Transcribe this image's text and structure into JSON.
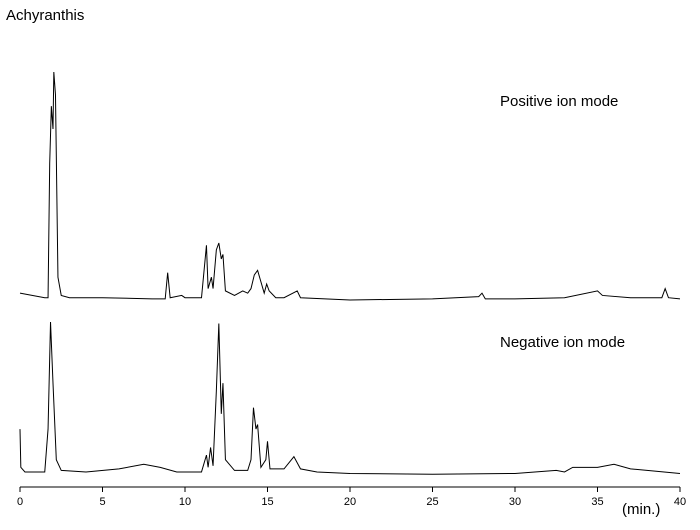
{
  "chart_data": [
    {
      "type": "line",
      "title": "Achyranthis",
      "annotation": "Positive ion mode",
      "color": "#000000",
      "ylim": [
        0,
        100
      ],
      "x": [
        0,
        1.5,
        1.7,
        1.8,
        1.9,
        2.0,
        2.05,
        2.15,
        2.3,
        2.5,
        3,
        5,
        8,
        8.8,
        8.95,
        9.1,
        9.8,
        10,
        11,
        11.3,
        11.4,
        11.6,
        11.7,
        11.9,
        12.05,
        12.2,
        12.3,
        12.45,
        13,
        13.5,
        13.8,
        14.0,
        14.2,
        14.4,
        14.6,
        14.8,
        14.95,
        15.1,
        15.5,
        16,
        16.8,
        17,
        20,
        25,
        27.8,
        28,
        28.2,
        30,
        33,
        35,
        35.3,
        37,
        38.9,
        39.1,
        39.3,
        40
      ],
      "values": [
        3,
        1,
        1,
        60,
        85,
        75,
        100,
        90,
        10,
        2,
        1,
        1,
        0.5,
        0.5,
        12,
        1,
        2,
        1,
        1,
        24,
        5,
        10,
        5,
        22,
        25,
        18,
        20,
        4,
        2,
        4,
        3,
        5,
        11,
        13,
        8,
        3,
        7,
        4,
        1,
        1,
        4,
        1,
        0,
        0.5,
        1.5,
        3,
        0.5,
        0.5,
        1,
        4,
        2,
        1,
        1,
        5,
        1,
        0.5
      ]
    },
    {
      "type": "line",
      "annotation": "Negative ion mode",
      "color": "#000000",
      "ylim": [
        0,
        100
      ],
      "xlim": [
        0,
        40
      ],
      "xticks": [
        0,
        5,
        10,
        15,
        20,
        25,
        30,
        35,
        40
      ],
      "xlabel": "(min.)",
      "x": [
        0,
        0.05,
        0.3,
        1.5,
        1.7,
        1.85,
        2.0,
        2.2,
        2.5,
        4,
        6,
        7.5,
        8.5,
        9.5,
        11,
        11.3,
        11.4,
        11.55,
        11.7,
        11.9,
        12.05,
        12.2,
        12.3,
        12.45,
        13,
        13.8,
        14.0,
        14.15,
        14.3,
        14.4,
        14.6,
        14.9,
        15.0,
        15.15,
        16,
        16.6,
        16.8,
        17,
        18,
        20,
        25,
        30,
        32.5,
        33,
        33.5,
        35,
        36,
        37,
        38,
        40
      ],
      "values": [
        30,
        5,
        2,
        2,
        30,
        100,
        60,
        10,
        3,
        2,
        4,
        7,
        5,
        2,
        2,
        13,
        5,
        18,
        6,
        55,
        99,
        40,
        60,
        10,
        3,
        3,
        10,
        44,
        30,
        33,
        5,
        10,
        22,
        4,
        4,
        12,
        8,
        4,
        2,
        1,
        0.5,
        1,
        3,
        2,
        5,
        5,
        7,
        4,
        3,
        1
      ]
    }
  ]
}
